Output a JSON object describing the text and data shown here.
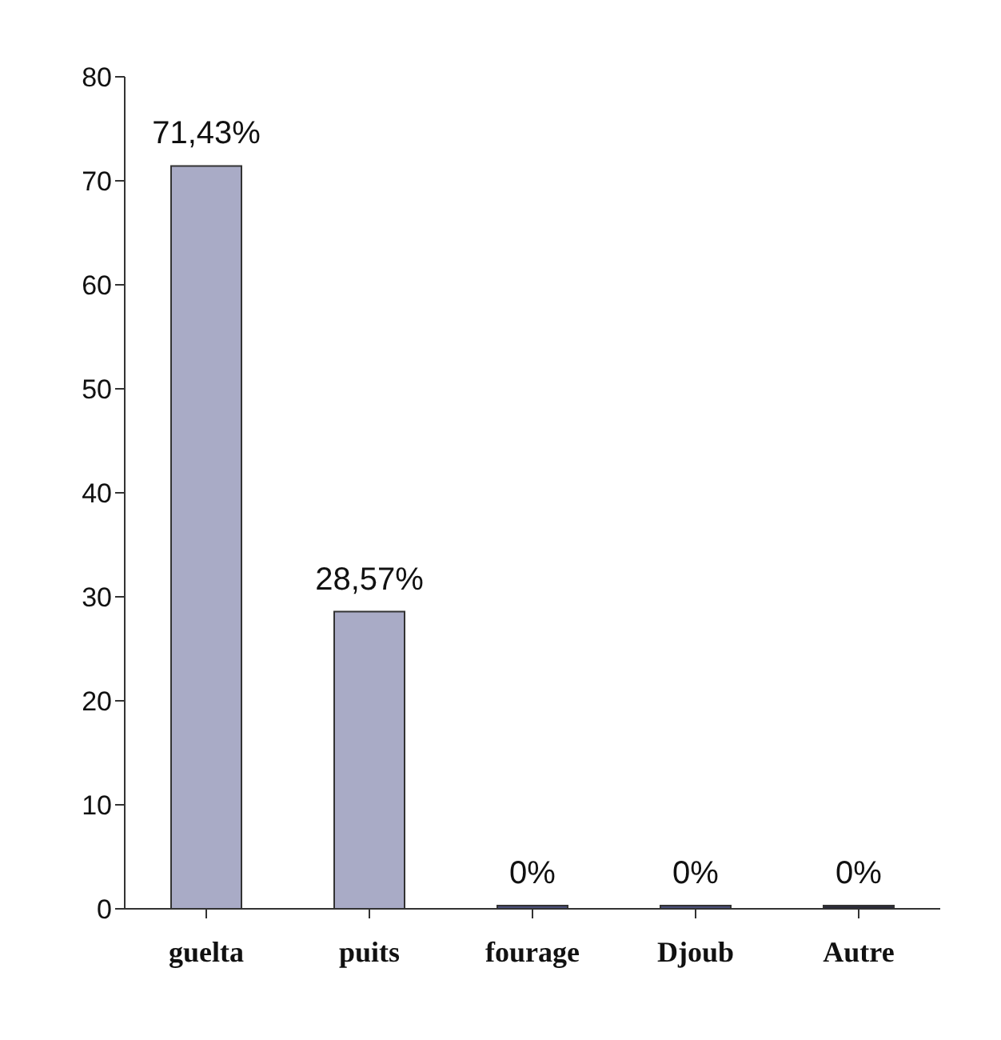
{
  "chart_data": {
    "type": "bar",
    "categories": [
      "guelta",
      "puits",
      "fourage",
      "Djoub",
      "Autre"
    ],
    "values": [
      71.43,
      28.57,
      0,
      0,
      0
    ],
    "value_labels": [
      "71,43%",
      "28,57%",
      "0%",
      "0%",
      "0%"
    ],
    "colors": [
      "#a9abc6",
      "#a9abc6",
      "#4a4e7a",
      "#4a4e7a",
      "#2a2a3a"
    ],
    "ylim": [
      0,
      80
    ],
    "yticks": [
      0,
      10,
      20,
      30,
      40,
      50,
      60,
      70,
      80
    ],
    "grid": false
  }
}
